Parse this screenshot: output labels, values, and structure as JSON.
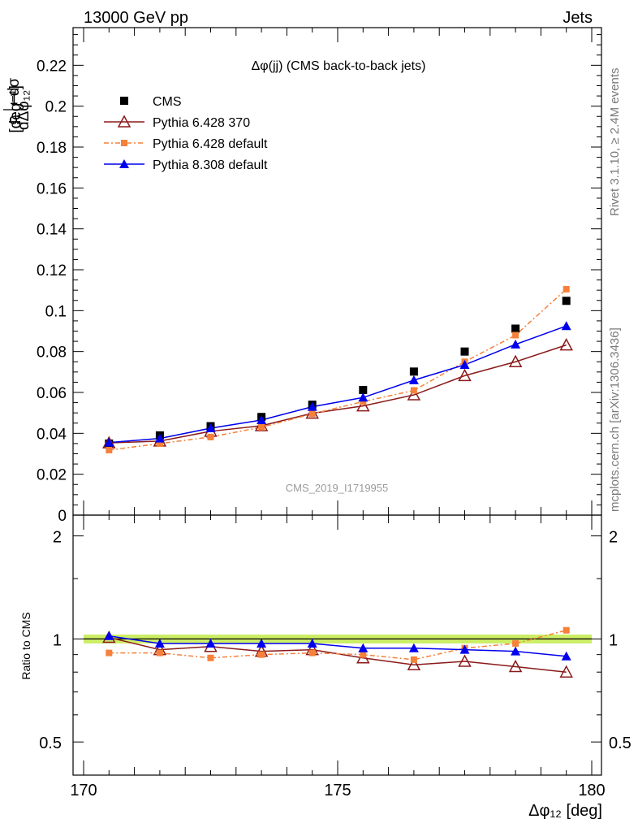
{
  "header": {
    "left": "13000 GeV pp",
    "right": "Jets"
  },
  "side_labels": {
    "rivet": "Rivet 3.1.10, ≥ 2.4M events",
    "mcplots": "mcplots.cern.ch [arXiv:1306.3436]"
  },
  "watermark": "CMS_2019_I1719955",
  "chart_data": {
    "type": "scatter",
    "title": "Δφ(jj) (CMS back-to-back jets)",
    "xlabel": "Δφ₁₂ [deg]",
    "ylabel": "1/σ dσ/dΔφ₁₂ [deg⁻¹]",
    "xlim": [
      170,
      180
    ],
    "ylim": [
      0,
      0.24
    ],
    "x_ticks": [
      "170",
      "175",
      "180"
    ],
    "y_ticks": [
      "0",
      "0.02",
      "0.04",
      "0.06",
      "0.08",
      "0.1",
      "0.12",
      "0.14",
      "0.16",
      "0.18",
      "0.2",
      "0.22"
    ],
    "x": [
      170.5,
      171.5,
      172.5,
      173.5,
      174.5,
      175.5,
      176.5,
      177.5,
      178.5,
      179.5
    ],
    "series": [
      {
        "name": "CMS",
        "color": "#000000",
        "style": "points-square",
        "values": [
          0.035,
          0.039,
          0.0435,
          0.048,
          0.054,
          0.0612,
          0.0702,
          0.08,
          0.0912,
          0.1048
        ]
      },
      {
        "name": "Pythia 6.428 370",
        "color": "#8b1a1a",
        "style": "line-open-triangle",
        "values": [
          0.0353,
          0.0362,
          0.041,
          0.0437,
          0.0498,
          0.0534,
          0.0588,
          0.0682,
          0.075,
          0.0832
        ]
      },
      {
        "name": "Pythia 6.428 default",
        "color": "#f5813a",
        "style": "dashdot-square",
        "values": [
          0.0318,
          0.035,
          0.0382,
          0.043,
          0.0495,
          0.0555,
          0.061,
          0.075,
          0.088,
          0.1105
        ]
      },
      {
        "name": "Pythia 8.308 default",
        "color": "#0000ee",
        "style": "line-filled-triangle",
        "values": [
          0.0355,
          0.0375,
          0.0425,
          0.0465,
          0.053,
          0.0575,
          0.066,
          0.0735,
          0.0835,
          0.0925
        ]
      }
    ],
    "ratio": {
      "ylabel": "Ratio to CMS",
      "ylim": [
        0.4,
        2.3
      ],
      "scale": "log",
      "y_ticks": [
        "0.5",
        "1",
        "2"
      ],
      "band": [
        0.97,
        1.03
      ],
      "band_color": "#ccee66",
      "series": [
        {
          "name": "Pythia 6.428 370",
          "values": [
            1.01,
            0.93,
            0.95,
            0.92,
            0.93,
            0.88,
            0.84,
            0.86,
            0.83,
            0.8
          ]
        },
        {
          "name": "Pythia 6.428 default",
          "values": [
            0.91,
            0.91,
            0.88,
            0.9,
            0.91,
            0.9,
            0.87,
            0.94,
            0.97,
            1.06
          ]
        },
        {
          "name": "Pythia 8.308 default",
          "values": [
            1.02,
            0.97,
            0.97,
            0.97,
            0.97,
            0.94,
            0.94,
            0.93,
            0.92,
            0.89
          ]
        }
      ]
    }
  }
}
